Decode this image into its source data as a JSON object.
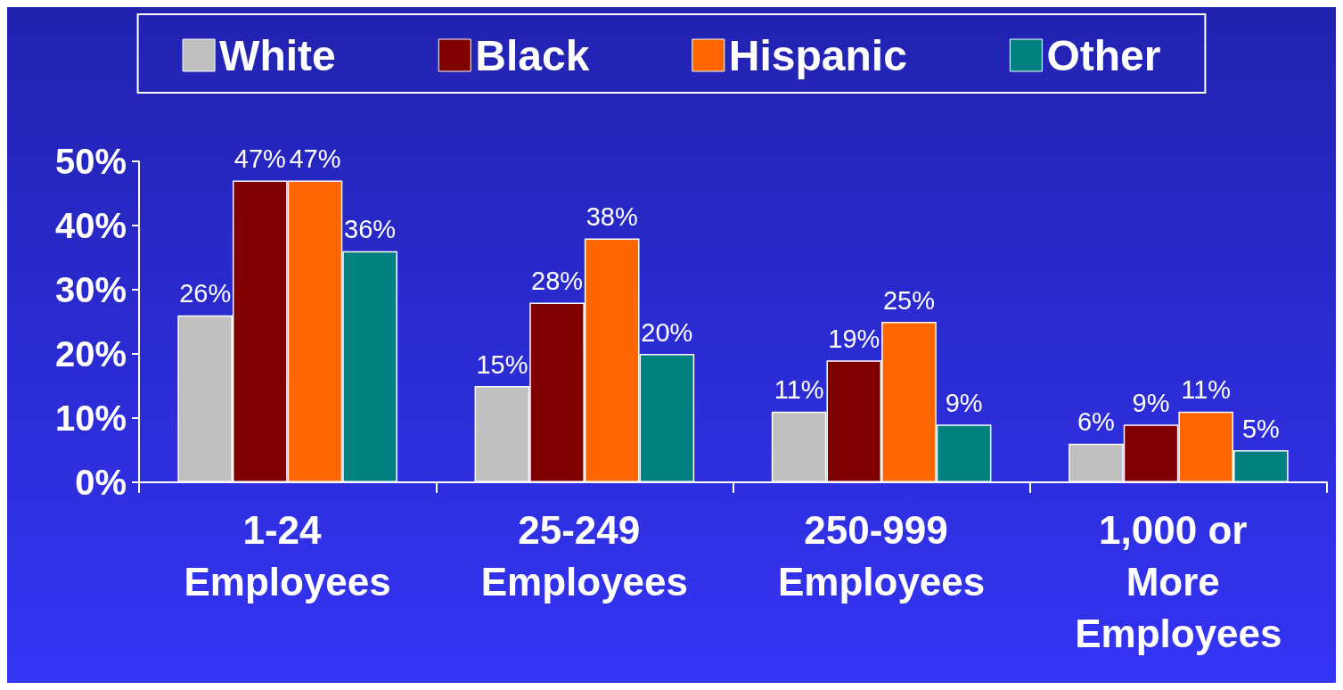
{
  "chart_data": {
    "type": "bar",
    "categories": [
      "1-24 Employees",
      "25-249 Employees",
      "250-999 Employees",
      "1,000 or More Employees"
    ],
    "series": [
      {
        "name": "White",
        "color": "#c0c0c0",
        "values": [
          26,
          15,
          11,
          6
        ],
        "value_labels": [
          "26%",
          "15%",
          "11%",
          "6%"
        ]
      },
      {
        "name": "Black",
        "color": "#800000",
        "values": [
          47,
          28,
          19,
          9
        ],
        "value_labels": [
          "47%",
          "28%",
          "19%",
          "9%"
        ]
      },
      {
        "name": "Hispanic",
        "color": "#ff6600",
        "values": [
          47,
          38,
          25,
          11
        ],
        "value_labels": [
          "47%",
          "38%",
          "25%",
          "11%"
        ]
      },
      {
        "name": "Other",
        "color": "#008080",
        "values": [
          36,
          20,
          9,
          5
        ],
        "value_labels": [
          "36%",
          "20%",
          "9%",
          "5%"
        ]
      }
    ],
    "ylim": [
      0,
      50
    ],
    "yticks": [
      {
        "value": 0,
        "label": "0%"
      },
      {
        "value": 10,
        "label": "10%"
      },
      {
        "value": 20,
        "label": "20%"
      },
      {
        "value": 30,
        "label": "30%"
      },
      {
        "value": 40,
        "label": "40%"
      },
      {
        "value": 50,
        "label": "50%"
      }
    ],
    "grid": false,
    "legend": "top"
  }
}
